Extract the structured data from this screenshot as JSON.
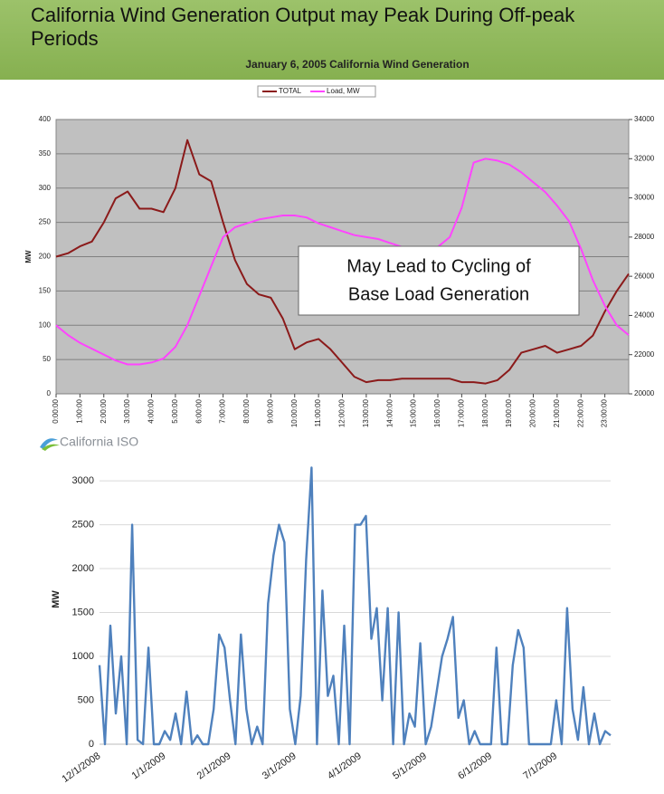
{
  "title": "California Wind Generation Output may Peak During Off-peak Periods",
  "logo": "California ISO",
  "chart_data": [
    {
      "type": "line",
      "title": "January 6, 2005  California Wind Generation",
      "y_label": "MW",
      "x": [
        0,
        0.5,
        1,
        1.5,
        2,
        2.5,
        3,
        3.5,
        4,
        4.5,
        5,
        5.5,
        6,
        6.5,
        7,
        7.5,
        8,
        8.5,
        9,
        9.5,
        10,
        10.5,
        11,
        11.5,
        12,
        12.5,
        13,
        13.5,
        14,
        14.5,
        15,
        15.5,
        16,
        16.5,
        17,
        17.5,
        18,
        18.5,
        19,
        19.5,
        20,
        20.5,
        21,
        21.5,
        22,
        22.5,
        23,
        23.5,
        24
      ],
      "xlim": [
        0,
        24
      ],
      "xticks": [
        {
          "value": 0,
          "label": "0:00:00"
        },
        {
          "value": 1,
          "label": "1:00:00"
        },
        {
          "value": 2,
          "label": "2:00:00"
        },
        {
          "value": 3,
          "label": "3:00:00"
        },
        {
          "value": 4,
          "label": "4:00:00"
        },
        {
          "value": 5,
          "label": "5:00:00"
        },
        {
          "value": 6,
          "label": "6:00:00"
        },
        {
          "value": 7,
          "label": "7:00:00"
        },
        {
          "value": 8,
          "label": "8:00:00"
        },
        {
          "value": 9,
          "label": "9:00:00"
        },
        {
          "value": 10,
          "label": "10:00:00"
        },
        {
          "value": 11,
          "label": "11:00:00"
        },
        {
          "value": 12,
          "label": "12:00:00"
        },
        {
          "value": 13,
          "label": "13:00:00"
        },
        {
          "value": 14,
          "label": "14:00:00"
        },
        {
          "value": 15,
          "label": "15:00:00"
        },
        {
          "value": 16,
          "label": "16:00:00"
        },
        {
          "value": 17,
          "label": "17:00:00"
        },
        {
          "value": 18,
          "label": "18:00:00"
        },
        {
          "value": 19,
          "label": "19:00:00"
        },
        {
          "value": 20,
          "label": "20:00:00"
        },
        {
          "value": 21,
          "label": "21:00:00"
        },
        {
          "value": 22,
          "label": "22:00:00"
        },
        {
          "value": 23,
          "label": "23:00:00"
        }
      ],
      "ylim": [
        0,
        400
      ],
      "yticks": [
        0,
        50,
        100,
        150,
        200,
        250,
        300,
        350,
        400
      ],
      "y2lim": [
        20000,
        34000
      ],
      "y2ticks": [
        20000,
        22000,
        24000,
        26000,
        28000,
        30000,
        32000,
        34000
      ],
      "grid": true,
      "legend": "top",
      "series": [
        {
          "name": "TOTAL",
          "color": "#8b1a1a",
          "values": [
            200,
            205,
            215,
            222,
            250,
            285,
            295,
            270,
            270,
            265,
            300,
            370,
            320,
            310,
            250,
            195,
            160,
            145,
            140,
            110,
            65,
            75,
            80,
            65,
            45,
            25,
            17,
            20,
            20,
            22,
            22,
            22,
            22,
            22,
            17,
            17,
            15,
            20,
            35,
            60,
            65,
            70,
            60,
            65,
            70,
            85,
            120,
            150,
            175
          ]
        },
        {
          "name": "Load, MW",
          "color": "#ff44ff",
          "axis": "y2",
          "values": [
            23500,
            23000,
            22600,
            22300,
            22000,
            21700,
            21500,
            21500,
            21600,
            21800,
            22400,
            23500,
            25000,
            26500,
            28000,
            28500,
            28700,
            28900,
            29000,
            29100,
            29100,
            29000,
            28700,
            28500,
            28300,
            28100,
            28000,
            27900,
            27700,
            27500,
            27500,
            27400,
            27500,
            28000,
            29500,
            31800,
            32000,
            31900,
            31700,
            31300,
            30800,
            30300,
            29600,
            28800,
            27400,
            25800,
            24500,
            23500,
            23000
          ]
        }
      ],
      "annotation": [
        "May Lead to Cycling of",
        "Base Load Generation"
      ]
    },
    {
      "type": "line",
      "y_label": "MW",
      "categories": [
        "12/1/2008",
        null,
        null,
        null,
        null,
        null,
        null,
        null,
        null,
        null,
        null,
        null,
        "1/1/2009",
        null,
        null,
        null,
        null,
        null,
        null,
        null,
        null,
        null,
        null,
        null,
        "2/1/2009",
        null,
        null,
        null,
        null,
        null,
        null,
        null,
        null,
        null,
        null,
        null,
        "3/1/2009",
        null,
        null,
        null,
        null,
        null,
        null,
        null,
        null,
        null,
        null,
        null,
        "4/1/2009",
        null,
        null,
        null,
        null,
        null,
        null,
        null,
        null,
        null,
        null,
        null,
        "5/1/2009",
        null,
        null,
        null,
        null,
        null,
        null,
        null,
        null,
        null,
        null,
        null,
        "6/1/2009",
        null,
        null,
        null,
        null,
        null,
        null,
        null,
        null,
        null,
        null,
        null,
        "7/1/2009",
        null,
        null,
        null,
        null,
        null,
        null,
        null,
        null,
        null,
        null
      ],
      "values": [
        900,
        0,
        1350,
        350,
        1000,
        0,
        2500,
        50,
        0,
        1100,
        0,
        0,
        150,
        50,
        350,
        0,
        600,
        0,
        100,
        0,
        0,
        400,
        1250,
        1100,
        500,
        0,
        1250,
        400,
        0,
        200,
        0,
        1600,
        2150,
        2500,
        2300,
        400,
        0,
        550,
        2100,
        3150,
        0,
        1750,
        550,
        780,
        0,
        1350,
        0,
        2500,
        2500,
        2600,
        1200,
        1550,
        500,
        1550,
        0,
        1500,
        0,
        350,
        200,
        1150,
        0,
        200,
        600,
        1000,
        1200,
        1450,
        300,
        500,
        0,
        150,
        0,
        0,
        0,
        1100,
        0,
        0,
        900,
        1300,
        1100,
        0,
        0,
        0,
        0,
        0,
        500,
        0,
        1550,
        400,
        50,
        650,
        0,
        350,
        0,
        150,
        100
      ],
      "color": "#4f81bd",
      "ylim": [
        0,
        3300
      ],
      "yticks": [
        0,
        500,
        1000,
        1500,
        2000,
        2500,
        3000
      ],
      "grid": true
    }
  ]
}
